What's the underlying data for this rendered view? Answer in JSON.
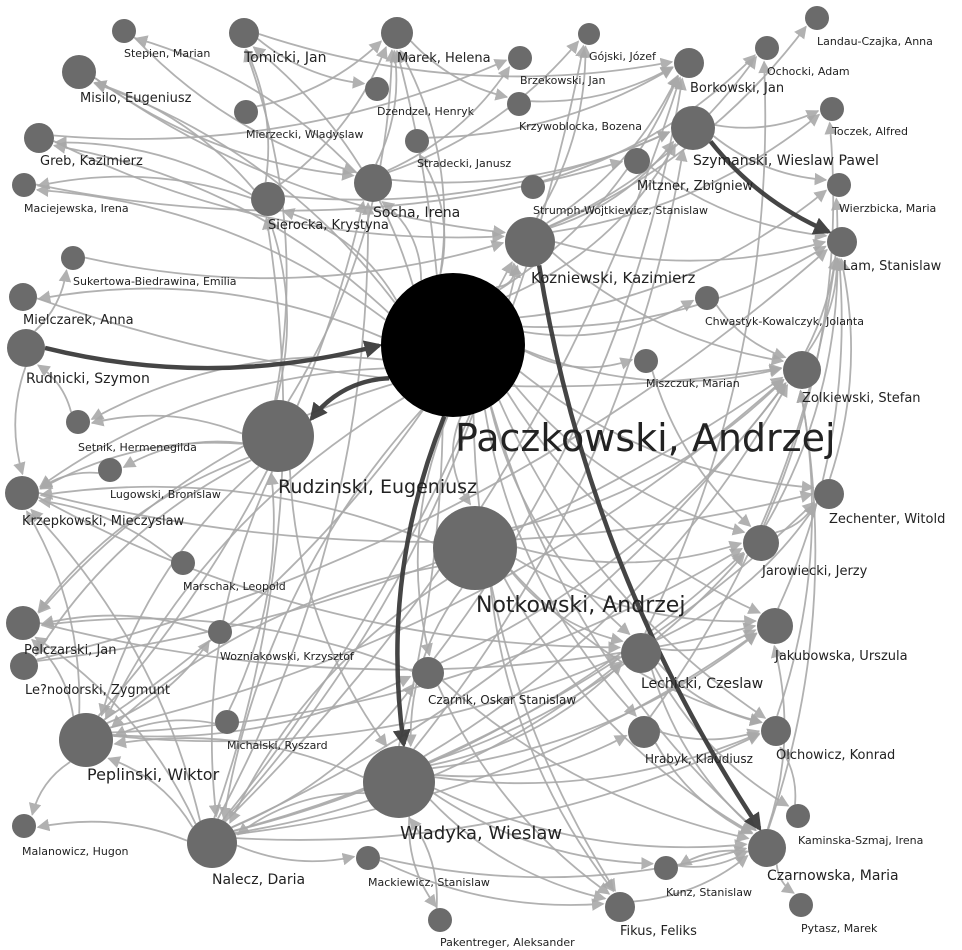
{
  "colors": {
    "edge": "#a9a9a9",
    "strong_edge": "#3c3c3c",
    "center_node": "#000000",
    "node": "#6b6b6b",
    "background": "#ffffff"
  },
  "nodes": [
    {
      "id": "paczkowski",
      "label": "Paczkowski, Andrzej"
    },
    {
      "id": "notkowski",
      "label": "Notkowski, Andrzej"
    },
    {
      "id": "rudzinski",
      "label": "Rudzinski, Eugeniusz"
    },
    {
      "id": "wladyka",
      "label": "Wladyka, Wieslaw"
    },
    {
      "id": "kozniewski",
      "label": "Kozniewski, Kazimierz"
    },
    {
      "id": "szymanski",
      "label": "Szymanski, Wieslaw Pawel"
    },
    {
      "id": "peplinski",
      "label": "Peplinski, Wiktor"
    },
    {
      "id": "nalecz",
      "label": "Nalecz, Daria"
    },
    {
      "id": "lechicki",
      "label": "Lechicki, Czeslaw"
    },
    {
      "id": "czarnowska",
      "label": "Czarnowska, Maria"
    },
    {
      "id": "zolkiewski",
      "label": "Zolkiewski, Stefan"
    },
    {
      "id": "jarowiecki",
      "label": "Jarowiecki, Jerzy"
    },
    {
      "id": "jakubowska",
      "label": "Jakubowska, Urszula"
    },
    {
      "id": "olchowicz",
      "label": "Olchowicz, Konrad"
    },
    {
      "id": "hrabyk",
      "label": "Hrabyk, Klaudiusz"
    },
    {
      "id": "socha",
      "label": "Socha, Irena"
    },
    {
      "id": "sierocka",
      "label": "Sierocka, Krystyna"
    },
    {
      "id": "czarnik",
      "label": "Czarnik, Oskar Stanislaw"
    },
    {
      "id": "rudnicki",
      "label": "Rudnicki, Szymon"
    },
    {
      "id": "krzepkowski",
      "label": "Krzepkowski, Mieczyslaw"
    },
    {
      "id": "pelczarski",
      "label": "Pelczarski, Jan"
    },
    {
      "id": "leznodorski",
      "label": "Le?nodorski, Zygmunt"
    },
    {
      "id": "misilo",
      "label": "Misilo, Eugeniusz"
    },
    {
      "id": "greb",
      "label": "Greb, Kazimierz"
    },
    {
      "id": "mielczarek",
      "label": "Mielczarek, Anna"
    },
    {
      "id": "tomicki",
      "label": "Tomicki, Jan"
    },
    {
      "id": "marek",
      "label": "Marek, Helena"
    },
    {
      "id": "borkowski",
      "label": "Borkowski, Jan"
    },
    {
      "id": "lam",
      "label": "Lam, Stanislaw"
    },
    {
      "id": "zechenter",
      "label": "Zechenter, Witold"
    },
    {
      "id": "fikus",
      "label": "Fikus, Feliks"
    },
    {
      "id": "stepien",
      "label": "Stepien, Marian"
    },
    {
      "id": "dzendzel",
      "label": "Dzendzel, Henryk"
    },
    {
      "id": "mierzecki",
      "label": "Mierzecki, Wladyslaw"
    },
    {
      "id": "stradecki",
      "label": "Stradecki, Janusz"
    },
    {
      "id": "brzekowski",
      "label": "Brzekowski, Jan"
    },
    {
      "id": "gojski",
      "label": "Gójski, Józef"
    },
    {
      "id": "krzywoblocka",
      "label": "Krzywoblocka, Bozena"
    },
    {
      "id": "landau",
      "label": "Landau-Czajka, Anna"
    },
    {
      "id": "ochocki",
      "label": "Ochocki, Adam"
    },
    {
      "id": "toczek",
      "label": "Toczek, Alfred"
    },
    {
      "id": "mitzner",
      "label": "Mitzner, Zbigniew"
    },
    {
      "id": "strumph",
      "label": "Strumph-Wojtkiewicz, Stanislaw"
    },
    {
      "id": "wierzbicka",
      "label": "Wierzbicka, Maria"
    },
    {
      "id": "maciejewska",
      "label": "Maciejewska, Irena"
    },
    {
      "id": "sukertowa",
      "label": "Sukertowa-Biedrawina, Emilia"
    },
    {
      "id": "chwastyk",
      "label": "Chwastyk-Kowalczyk, Jolanta"
    },
    {
      "id": "miszczuk",
      "label": "Miszczuk, Marian"
    },
    {
      "id": "setnik",
      "label": "Setnik, Hermenegilda"
    },
    {
      "id": "lugowski",
      "label": "Lugowski, Bronislaw"
    },
    {
      "id": "marschak",
      "label": "Marschak, Leopold"
    },
    {
      "id": "wozniakowski",
      "label": "Wozniakowski, Krzysztof"
    },
    {
      "id": "michalski",
      "label": "Michalski, Ryszard"
    },
    {
      "id": "malanowicz",
      "label": "Malanowicz, Hugon"
    },
    {
      "id": "mackiewicz",
      "label": "Mackiewicz, Stanislaw"
    },
    {
      "id": "pakentreger",
      "label": "Pakentreger, Aleksander"
    },
    {
      "id": "kunz",
      "label": "Kunz, Stanislaw"
    },
    {
      "id": "kaminska",
      "label": "Kaminska-Szmaj, Irena"
    },
    {
      "id": "pytasz",
      "label": "Pytasz, Marek"
    }
  ]
}
